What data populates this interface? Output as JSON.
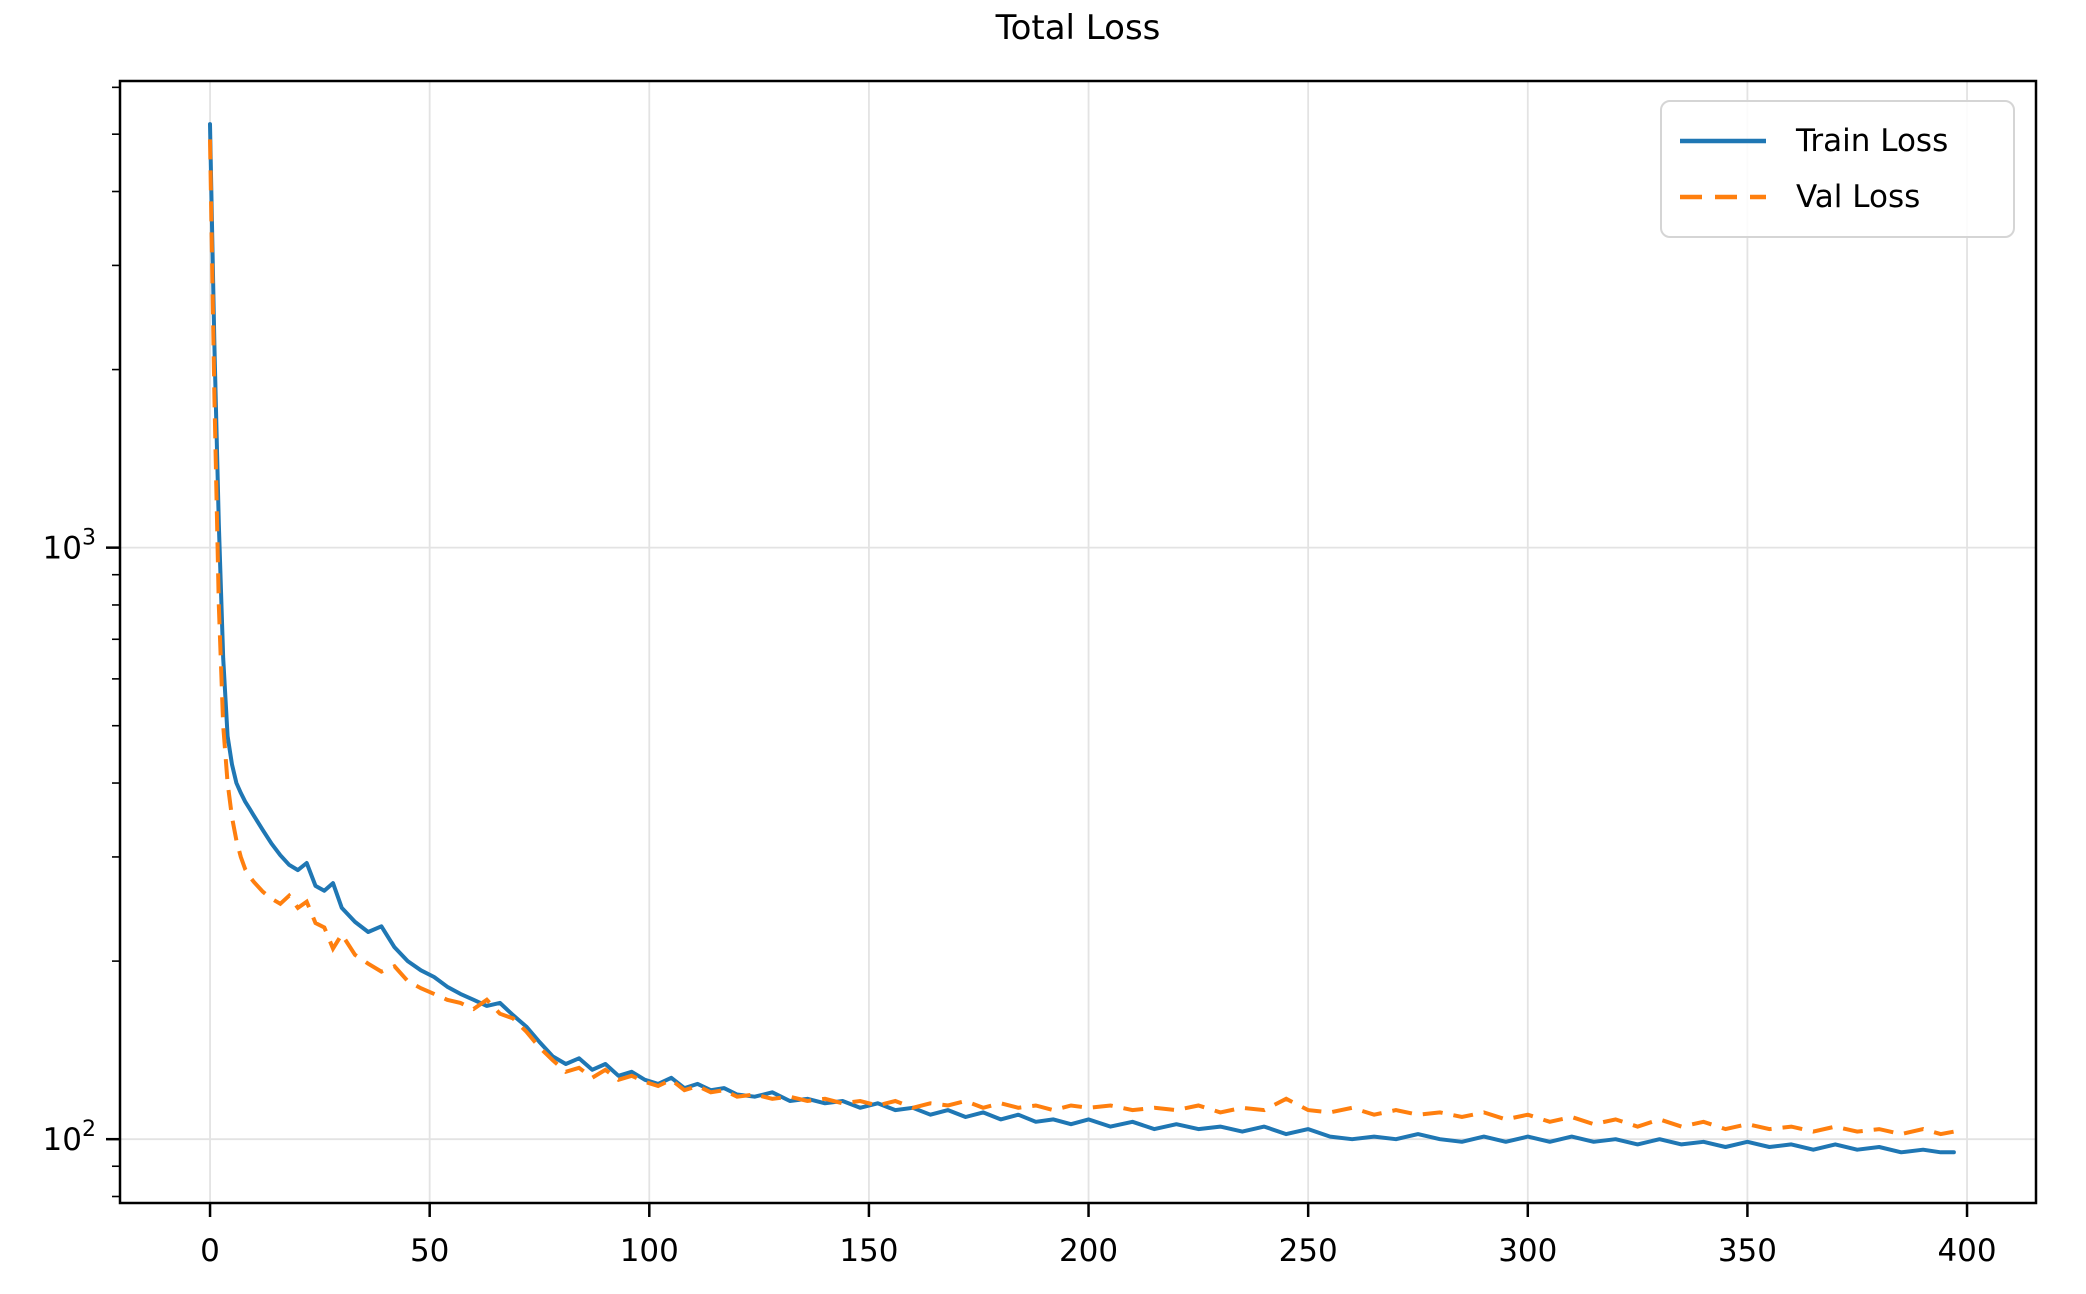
{
  "chart_data": {
    "type": "line",
    "title": "Total Loss",
    "xlabel": "",
    "ylabel": "",
    "x_scale": "linear",
    "y_scale": "log",
    "xlim": [
      -20.5,
      415.7
    ],
    "ylim": [
      78,
      6150
    ],
    "grid": true,
    "legend_position": "upper right",
    "xticks": [
      0,
      50,
      100,
      150,
      200,
      250,
      300,
      350,
      400
    ],
    "yticks_major": [
      {
        "value": 100,
        "label_base": "10",
        "label_exp": "2"
      },
      {
        "value": 1000,
        "label_base": "10",
        "label_exp": "3"
      }
    ],
    "yticks_minor": [
      80,
      90,
      200,
      300,
      400,
      500,
      600,
      700,
      800,
      900,
      2000,
      3000,
      4000,
      5000,
      6000
    ],
    "x": [
      0,
      1,
      2,
      3,
      4,
      5,
      6,
      7,
      8,
      9,
      10,
      12,
      14,
      16,
      18,
      20,
      22,
      24,
      26,
      28,
      30,
      33,
      36,
      39,
      42,
      45,
      48,
      51,
      54,
      57,
      60,
      63,
      66,
      69,
      72,
      75,
      78,
      81,
      84,
      87,
      90,
      93,
      96,
      99,
      102,
      105,
      108,
      111,
      114,
      117,
      120,
      124,
      128,
      132,
      136,
      140,
      144,
      148,
      152,
      156,
      160,
      164,
      168,
      172,
      176,
      180,
      184,
      188,
      192,
      196,
      200,
      205,
      210,
      215,
      220,
      225,
      230,
      235,
      240,
      245,
      250,
      255,
      260,
      265,
      270,
      275,
      280,
      285,
      290,
      295,
      300,
      305,
      310,
      315,
      320,
      325,
      330,
      335,
      340,
      345,
      350,
      355,
      360,
      365,
      370,
      375,
      380,
      385,
      390,
      394,
      397
    ],
    "series": [
      {
        "name": "Train Loss",
        "color": "#1f77b4",
        "style": "solid",
        "values": [
          5200,
          2200,
          1100,
          650,
          480,
          430,
          400,
          385,
          372,
          362,
          352,
          333,
          316,
          302,
          291,
          285,
          293,
          268,
          263,
          271,
          246,
          233,
          224,
          229,
          211,
          200,
          193,
          188,
          181,
          176,
          172,
          168,
          170,
          162,
          155,
          146,
          138,
          134,
          137,
          131,
          134,
          128,
          130,
          126,
          124,
          127,
          122,
          124,
          121,
          122,
          119,
          118,
          120,
          116,
          117,
          115,
          116,
          113,
          115,
          112,
          113,
          110,
          112,
          109,
          111,
          108,
          110,
          107,
          108,
          106,
          108,
          105,
          107,
          104,
          106,
          104,
          105,
          103,
          105,
          102,
          104,
          101,
          100,
          101,
          100,
          102,
          100,
          99,
          101,
          99,
          101,
          99,
          101,
          99,
          100,
          98,
          100,
          98,
          99,
          97,
          99,
          97,
          98,
          96,
          98,
          96,
          97,
          95,
          96,
          95,
          95
        ]
      },
      {
        "name": "Val Loss",
        "color": "#ff7f0e",
        "style": "dashed",
        "values": [
          4900,
          1800,
          800,
          500,
          400,
          350,
          320,
          300,
          286,
          278,
          272,
          262,
          255,
          250,
          258,
          246,
          252,
          232,
          228,
          210,
          222,
          205,
          198,
          192,
          196,
          185,
          180,
          176,
          172,
          170,
          166,
          172,
          163,
          160,
          152,
          143,
          136,
          130,
          132,
          127,
          131,
          126,
          128,
          125,
          123,
          126,
          121,
          123,
          120,
          121,
          118,
          119,
          117,
          118,
          116,
          117,
          115,
          116,
          114,
          116,
          113,
          115,
          114,
          116,
          113,
          115,
          113,
          114,
          112,
          114,
          113,
          114,
          112,
          113,
          112,
          114,
          111,
          113,
          112,
          117,
          112,
          111,
          113,
          110,
          112,
          110,
          111,
          109,
          111,
          108,
          110,
          107,
          109,
          106,
          108,
          105,
          108,
          105,
          107,
          104,
          106,
          104,
          105,
          103,
          105,
          103,
          104,
          102,
          104,
          102,
          103
        ]
      }
    ]
  }
}
